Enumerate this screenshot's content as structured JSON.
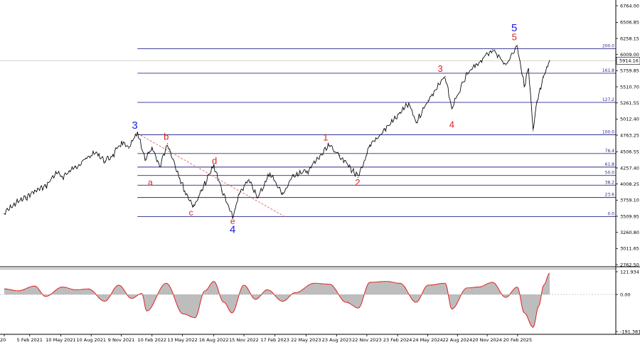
{
  "chart_data": [
    {
      "type": "line",
      "ylim": [
        2762.5,
        6764.0
      ],
      "x_range": [
        "2020-11-20",
        "2025-08-20"
      ],
      "price_ticks": [
        "6764.00",
        "6506.85",
        "6258.15",
        "6009.00",
        "5759.85",
        "5510.70",
        "5261.55",
        "5012.40",
        "4763.25",
        "4506.55",
        "4257.40",
        "4008.25",
        "3759.10",
        "3509.95",
        "3260.80",
        "3011.65",
        "2762.50"
      ],
      "price_tick_values": [
        6764.0,
        6506.85,
        6258.15,
        6009.0,
        5759.85,
        5510.7,
        5261.55,
        5012.4,
        4763.25,
        4506.55,
        4257.4,
        4008.25,
        3759.1,
        3509.95,
        3260.8,
        3011.65,
        2762.5
      ],
      "current_price": "5914.16",
      "current_price_value": 5914.16,
      "date_ticks": [
        {
          "label": "20",
          "date": "2020-11-20"
        },
        {
          "label": "5 Feb 2021",
          "date": "2021-02-05"
        },
        {
          "label": "10 May 2021",
          "date": "2021-05-10"
        },
        {
          "label": "10 Aug 2021",
          "date": "2021-08-10"
        },
        {
          "label": "9 Nov 2021",
          "date": "2021-11-09"
        },
        {
          "label": "10 Feb 2022",
          "date": "2022-02-10"
        },
        {
          "label": "13 May 2022",
          "date": "2022-05-13"
        },
        {
          "label": "16 Aug 2022",
          "date": "2022-08-16"
        },
        {
          "label": "15 Nov 2022",
          "date": "2022-11-15"
        },
        {
          "label": "17 Feb 2023",
          "date": "2023-02-17"
        },
        {
          "label": "22 May 2023",
          "date": "2023-05-22"
        },
        {
          "label": "23 Aug 2023",
          "date": "2023-08-23"
        },
        {
          "label": "22 Nov 2023",
          "date": "2023-11-22"
        },
        {
          "label": "23 Feb 2024",
          "date": "2024-02-23"
        },
        {
          "label": "24 May 2024",
          "date": "2024-05-24"
        },
        {
          "label": "22 Aug 2024",
          "date": "2024-08-22"
        },
        {
          "label": "20 Nov 2024",
          "date": "2024-11-20"
        },
        {
          "label": "20 Feb 2025",
          "date": "2025-02-20"
        }
      ],
      "series": [
        {
          "points": [
            [
              "2020-11-20",
              3550
            ],
            [
              "2020-12-20",
              3700
            ],
            [
              "2021-01-25",
              3800
            ],
            [
              "2021-02-20",
              3900
            ],
            [
              "2021-03-25",
              3970
            ],
            [
              "2021-04-25",
              4180
            ],
            [
              "2021-05-15",
              4120
            ],
            [
              "2021-06-25",
              4280
            ],
            [
              "2021-07-25",
              4400
            ],
            [
              "2021-08-25",
              4500
            ],
            [
              "2021-09-20",
              4360
            ],
            [
              "2021-10-15",
              4450
            ],
            [
              "2021-11-10",
              4650
            ],
            [
              "2021-12-01",
              4560
            ],
            [
              "2021-12-28",
              4790
            ],
            [
              "2022-01-20",
              4400
            ],
            [
              "2022-02-10",
              4550
            ],
            [
              "2022-03-05",
              4280
            ],
            [
              "2022-03-29",
              4630
            ],
            [
              "2022-05-05",
              4100
            ],
            [
              "2022-05-20",
              3900
            ],
            [
              "2022-06-16",
              3660
            ],
            [
              "2022-07-10",
              3900
            ],
            [
              "2022-08-16",
              4300
            ],
            [
              "2022-09-10",
              3900
            ],
            [
              "2022-10-12",
              3490
            ],
            [
              "2022-11-01",
              3850
            ],
            [
              "2022-11-30",
              4080
            ],
            [
              "2022-12-28",
              3800
            ],
            [
              "2023-02-02",
              4180
            ],
            [
              "2023-03-12",
              3850
            ],
            [
              "2023-04-15",
              4150
            ],
            [
              "2023-05-25",
              4200
            ],
            [
              "2023-07-31",
              4600
            ],
            [
              "2023-09-01",
              4450
            ],
            [
              "2023-10-27",
              4110
            ],
            [
              "2023-12-01",
              4590
            ],
            [
              "2024-01-15",
              4850
            ],
            [
              "2024-03-28",
              5250
            ],
            [
              "2024-04-19",
              4960
            ],
            [
              "2024-05-25",
              5300
            ],
            [
              "2024-07-16",
              5670
            ],
            [
              "2024-08-05",
              5180
            ],
            [
              "2024-09-20",
              5700
            ],
            [
              "2024-10-20",
              5860
            ],
            [
              "2024-12-06",
              6090
            ],
            [
              "2025-01-15",
              5850
            ],
            [
              "2025-02-19",
              6150
            ],
            [
              "2025-03-12",
              5530
            ],
            [
              "2025-03-25",
              5790
            ],
            [
              "2025-04-08",
              4830
            ],
            [
              "2025-04-20",
              5280
            ],
            [
              "2025-05-10",
              5660
            ],
            [
              "2025-05-28",
              5915
            ]
          ]
        }
      ],
      "fib_levels": [
        {
          "label": "200.0",
          "price": 6100
        },
        {
          "label": "161.8",
          "price": 5720
        },
        {
          "label": "127.2",
          "price": 5270
        },
        {
          "label": "100.0",
          "price": 4770
        },
        {
          "label": "76.4",
          "price": 4480
        },
        {
          "label": "61.8",
          "price": 4270
        },
        {
          "label": "50.0",
          "price": 4140
        },
        {
          "label": "38.2",
          "price": 3990
        },
        {
          "label": "23.6",
          "price": 3800
        },
        {
          "label": "0.0",
          "price": 3505
        }
      ],
      "trendline": {
        "from": [
          "2021-12-28",
          4790
        ],
        "to": [
          "2023-03-20",
          3500
        ]
      },
      "wave_labels": [
        {
          "text": "3",
          "date": "2021-12-20",
          "price": 4860,
          "style": "blue"
        },
        {
          "text": "b",
          "date": "2022-03-25",
          "price": 4690,
          "style": "red"
        },
        {
          "text": "a",
          "date": "2022-02-05",
          "price": 3990,
          "style": "red-s"
        },
        {
          "text": "c",
          "date": "2022-06-08",
          "price": 3520,
          "style": "red-s"
        },
        {
          "text": "d",
          "date": "2022-08-18",
          "price": 4320,
          "style": "red"
        },
        {
          "text": "e",
          "date": "2022-10-12",
          "price": 3390,
          "style": "red-s"
        },
        {
          "text": "4",
          "date": "2022-10-12",
          "price": 3250,
          "style": "blue"
        },
        {
          "text": "1",
          "date": "2023-07-20",
          "price": 4680,
          "style": "red"
        },
        {
          "text": "2",
          "date": "2023-10-25",
          "price": 3980,
          "style": "red"
        },
        {
          "text": "3",
          "date": "2024-07-01",
          "price": 5740,
          "style": "red"
        },
        {
          "text": "4",
          "date": "2024-08-05",
          "price": 4880,
          "style": "red"
        },
        {
          "text": "5",
          "date": "2025-02-10",
          "price": 6230,
          "style": "red"
        },
        {
          "text": "5",
          "date": "2025-02-10",
          "price": 6370,
          "style": "blue"
        }
      ]
    },
    {
      "type": "area",
      "ylim": [
        -191.381,
        121.934
      ],
      "ticks": [
        "121.934",
        "0.00",
        "-191.381"
      ],
      "tick_values": [
        121.934,
        0.0,
        -191.381
      ],
      "series": [
        {
          "points": [
            [
              "2020-11-20",
              30
            ],
            [
              "2021-01-01",
              20
            ],
            [
              "2021-02-20",
              45
            ],
            [
              "2021-03-25",
              -10
            ],
            [
              "2021-05-15",
              40
            ],
            [
              "2021-06-25",
              25
            ],
            [
              "2021-08-01",
              30
            ],
            [
              "2021-09-20",
              -35
            ],
            [
              "2021-11-01",
              50
            ],
            [
              "2021-12-10",
              -20
            ],
            [
              "2022-01-10",
              5
            ],
            [
              "2022-01-25",
              -85
            ],
            [
              "2022-03-25",
              60
            ],
            [
              "2022-05-15",
              -100
            ],
            [
              "2022-06-20",
              -120
            ],
            [
              "2022-07-20",
              20
            ],
            [
              "2022-08-16",
              70
            ],
            [
              "2022-09-15",
              -40
            ],
            [
              "2022-10-10",
              -95
            ],
            [
              "2022-11-15",
              50
            ],
            [
              "2022-12-20",
              -25
            ],
            [
              "2023-01-25",
              25
            ],
            [
              "2023-03-12",
              -35
            ],
            [
              "2023-04-20",
              10
            ],
            [
              "2023-06-15",
              60
            ],
            [
              "2023-08-01",
              55
            ],
            [
              "2023-09-20",
              -40
            ],
            [
              "2023-10-27",
              -70
            ],
            [
              "2023-12-01",
              65
            ],
            [
              "2024-01-20",
              70
            ],
            [
              "2024-03-01",
              60
            ],
            [
              "2024-04-19",
              -40
            ],
            [
              "2024-05-25",
              50
            ],
            [
              "2024-07-16",
              60
            ],
            [
              "2024-08-05",
              -75
            ],
            [
              "2024-09-20",
              35
            ],
            [
              "2024-10-25",
              40
            ],
            [
              "2024-12-06",
              65
            ],
            [
              "2025-01-15",
              -15
            ],
            [
              "2025-02-19",
              40
            ],
            [
              "2025-03-12",
              -95
            ],
            [
              "2025-04-08",
              -170
            ],
            [
              "2025-04-25",
              -60
            ],
            [
              "2025-05-10",
              50
            ],
            [
              "2025-05-28",
              115
            ]
          ]
        }
      ]
    }
  ]
}
